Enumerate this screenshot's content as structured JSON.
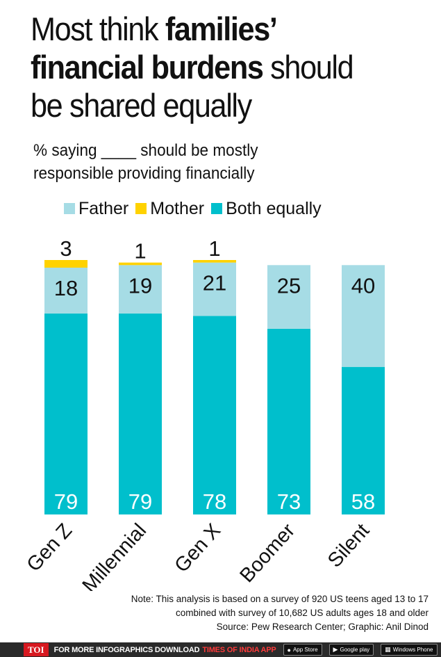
{
  "title": {
    "part1": "Most think ",
    "bold1": "families’",
    "bold2": "financial burdens",
    "part2": " should",
    "part3": "be shared equally"
  },
  "subtitle": {
    "line1": "% saying ____ should be mostly",
    "line2": "responsible providing financially"
  },
  "legend": [
    {
      "label": "Father",
      "color": "#a6dce5"
    },
    {
      "label": "Mother",
      "color": "#ffd200"
    },
    {
      "label": "Both equally",
      "color": "#00bfcc"
    }
  ],
  "chart_data": {
    "type": "bar",
    "stacked": true,
    "categories": [
      "Gen Z",
      "Millennial",
      "Gen X",
      "Boomer",
      "Silent"
    ],
    "series": [
      {
        "name": "Both equally",
        "color": "#00bfcc",
        "values": [
          79,
          79,
          78,
          73,
          58
        ],
        "labels": [
          "79",
          "79",
          "78",
          "73",
          "58"
        ]
      },
      {
        "name": "Father",
        "color": "#a6dce5",
        "values": [
          18,
          19,
          21,
          25,
          40
        ],
        "labels": [
          "18",
          "19",
          "21",
          "25",
          "40"
        ]
      },
      {
        "name": "Mother",
        "color": "#ffd200",
        "values": [
          3,
          1,
          1,
          0,
          0
        ],
        "labels": [
          "3",
          "1",
          "1",
          "",
          ""
        ]
      }
    ],
    "title": "Most think families’ financial burdens should be shared equally",
    "ylabel": "%",
    "ylim": [
      0,
      100
    ]
  },
  "notes": {
    "line1": "Note: This analysis is based on a survey of 920 US teens aged 13 to 17",
    "line2": "combined with survey of 10,682 US adults ages 18 and older",
    "line3": "Source: Pew Research Center; Graphic: Anil Dinod"
  },
  "footer": {
    "logo": "TOI",
    "text": "FOR MORE  INFOGRAPHICS DOWNLOAD",
    "brand": "TIMES OF INDIA APP",
    "badges": [
      "App Store",
      "Google play",
      "Windows Phone"
    ]
  }
}
